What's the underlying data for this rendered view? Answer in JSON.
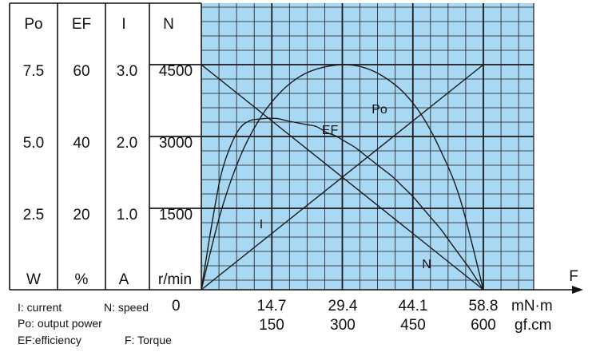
{
  "chart_data": {
    "type": "line",
    "grid": true,
    "background_color": "#a9d8f5",
    "line_color": "#1a1a1a",
    "columns": [
      {
        "header": "Po",
        "unit": "W",
        "ticks": [
          "7.5",
          "5.0",
          "2.5"
        ]
      },
      {
        "header": "EF",
        "unit": "%",
        "ticks": [
          "60",
          "40",
          "20"
        ]
      },
      {
        "header": "I",
        "unit": "A",
        "ticks": [
          "3.0",
          "2.0",
          "1.0"
        ]
      },
      {
        "header": "N",
        "unit": "r/min",
        "ticks": [
          "4500",
          "3000",
          "1500"
        ]
      }
    ],
    "x_axis": {
      "label": "F",
      "ticks_mNm": [
        "14.7",
        "29.4",
        "44.1",
        "58.8"
      ],
      "unit_mNm": "mN·m",
      "ticks_gfcm": [
        "150",
        "300",
        "450",
        "600"
      ],
      "unit_gfcm": "gf.cm",
      "zero_label": "0",
      "xlim": [
        0,
        70
      ]
    },
    "series": [
      {
        "name": "N",
        "x": [
          0,
          58.8
        ],
        "y_speed": [
          4500,
          0
        ]
      },
      {
        "name": "I",
        "x": [
          0,
          58.8
        ],
        "y_current": [
          0,
          3.0
        ]
      },
      {
        "name": "Po",
        "x": [
          0,
          4,
          8,
          12,
          16,
          20,
          24,
          29.4,
          34,
          38,
          42,
          46,
          50,
          54,
          58.8
        ],
        "y_power": [
          0,
          2.55,
          4.4,
          5.65,
          6.5,
          7.05,
          7.35,
          7.5,
          7.4,
          7.1,
          6.6,
          5.8,
          4.6,
          3.0,
          0
        ]
      },
      {
        "name": "EF",
        "x": [
          0,
          2,
          4,
          6,
          8,
          10,
          12,
          14,
          16,
          18,
          20,
          22,
          24,
          26,
          28,
          30,
          32,
          34,
          36,
          38,
          40,
          42,
          44,
          46,
          48,
          50,
          52,
          54,
          56,
          58.8
        ],
        "y_efficiency": [
          0,
          16,
          30,
          38,
          43,
          45,
          45.5,
          45.7,
          45.6,
          45,
          44.5,
          44,
          43.5,
          42,
          41,
          39.5,
          38,
          36,
          34,
          32,
          30,
          27.5,
          25,
          22,
          19,
          16,
          12.5,
          9,
          5.5,
          0
        ]
      }
    ]
  },
  "legend": {
    "current": "I: current",
    "speed": "N: speed",
    "power": "Po: output power",
    "efficiency": "EF:efficiency",
    "torque": "F: Torque"
  }
}
